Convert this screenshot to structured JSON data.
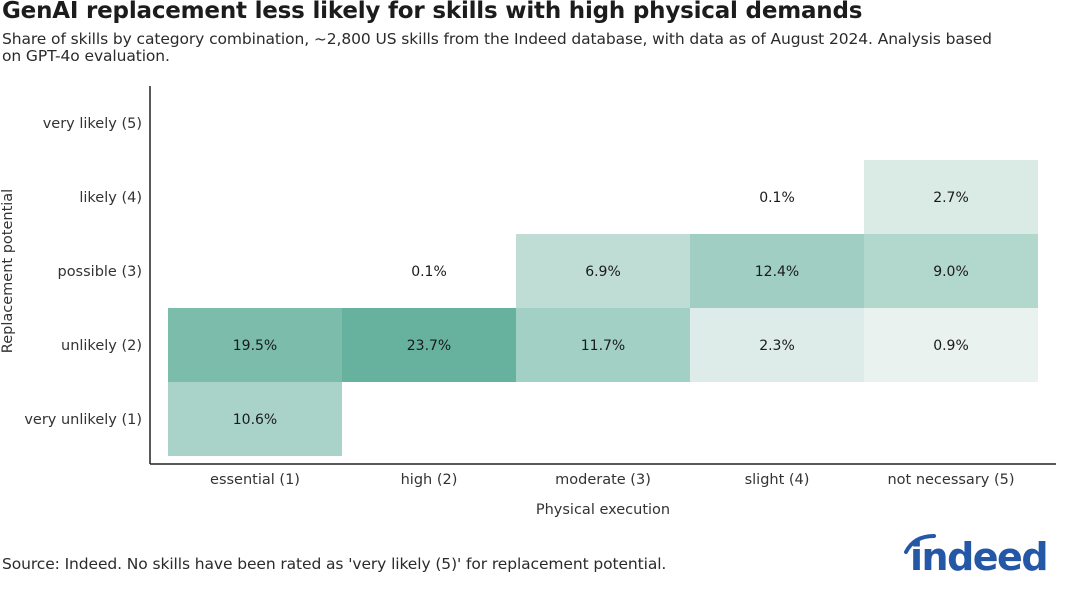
{
  "title": "GenAI replacement less likely for skills with high physical demands",
  "subtitle": "Share of skills by category combination, ~2,800 US skills from the Indeed database, with data as of August 2024. Analysis based on GPT-4o evaluation.",
  "source": "Source: Indeed. No skills have been rated as 'very likely (5)' for replacement potential.",
  "logo_text": "indeed",
  "colors": {
    "brand": "#2557a7",
    "low": "#f3f7f5",
    "high": "#67b29f"
  },
  "chart_data": {
    "type": "heatmap",
    "xlabel": "Physical execution",
    "ylabel": "Replacement potential",
    "x_categories": [
      "essential (1)",
      "high (2)",
      "moderate (3)",
      "slight (4)",
      "not necessary (5)"
    ],
    "y_categories": [
      "very unlikely (1)",
      "unlikely (2)",
      "possible (3)",
      "likely (4)",
      "very likely (5)"
    ],
    "value_unit": "%",
    "cells": [
      {
        "x": "essential (1)",
        "y": "very unlikely (1)",
        "value": 10.6,
        "label": "10.6%"
      },
      {
        "x": "essential (1)",
        "y": "unlikely (2)",
        "value": 19.5,
        "label": "19.5%"
      },
      {
        "x": "high (2)",
        "y": "unlikely (2)",
        "value": 23.7,
        "label": "23.7%"
      },
      {
        "x": "high (2)",
        "y": "possible (3)",
        "value": 0.1,
        "label": "0.1%"
      },
      {
        "x": "moderate (3)",
        "y": "unlikely (2)",
        "value": 11.7,
        "label": "11.7%"
      },
      {
        "x": "moderate (3)",
        "y": "possible (3)",
        "value": 6.9,
        "label": "6.9%"
      },
      {
        "x": "slight (4)",
        "y": "unlikely (2)",
        "value": 2.3,
        "label": "2.3%"
      },
      {
        "x": "slight (4)",
        "y": "possible (3)",
        "value": 12.4,
        "label": "12.4%"
      },
      {
        "x": "slight (4)",
        "y": "likely (4)",
        "value": 0.1,
        "label": "0.1%"
      },
      {
        "x": "not necessary (5)",
        "y": "unlikely (2)",
        "value": 0.9,
        "label": "0.9%"
      },
      {
        "x": "not necessary (5)",
        "y": "possible (3)",
        "value": 9.0,
        "label": "9.0%"
      },
      {
        "x": "not necessary (5)",
        "y": "likely (4)",
        "value": 2.7,
        "label": "2.7%"
      }
    ]
  }
}
